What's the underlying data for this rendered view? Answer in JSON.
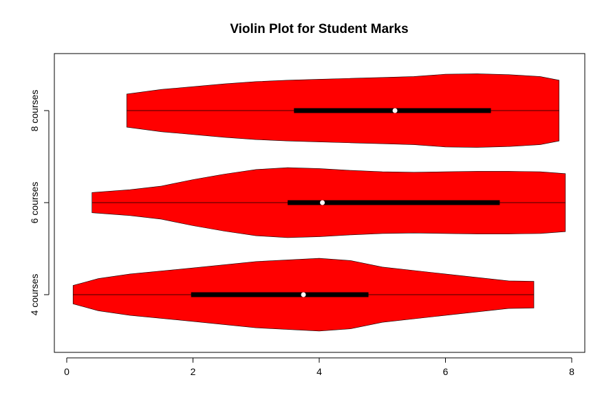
{
  "chart_data": {
    "type": "violin",
    "orientation": "horizontal",
    "title": "Violin Plot for Student Marks",
    "xlabel": "",
    "ylabel": "",
    "xlim": [
      0,
      8
    ],
    "x_ticks": [
      "0",
      "2",
      "4",
      "6",
      "8"
    ],
    "categories": [
      "4 courses",
      "6 courses",
      "8 courses"
    ],
    "grid": false,
    "fill_color": "#ff0000",
    "box_color": "#000000",
    "median_color": "#ffffff",
    "series": [
      {
        "label": "4 courses",
        "min": 0.1,
        "max": 7.4,
        "q1": 1.97,
        "median": 3.75,
        "q3": 4.78,
        "density": [
          [
            0.1,
            0.2
          ],
          [
            0.5,
            0.35
          ],
          [
            1.0,
            0.45
          ],
          [
            2.0,
            0.58
          ],
          [
            3.0,
            0.72
          ],
          [
            4.0,
            0.79
          ],
          [
            4.5,
            0.74
          ],
          [
            5.0,
            0.6
          ],
          [
            6.0,
            0.45
          ],
          [
            7.0,
            0.3
          ],
          [
            7.4,
            0.29
          ]
        ]
      },
      {
        "label": "6 courses",
        "min": 0.4,
        "max": 7.9,
        "q1": 3.5,
        "median": 4.05,
        "q3": 6.86,
        "density": [
          [
            0.4,
            0.22
          ],
          [
            1.0,
            0.28
          ],
          [
            1.5,
            0.36
          ],
          [
            2.0,
            0.5
          ],
          [
            2.5,
            0.62
          ],
          [
            3.0,
            0.72
          ],
          [
            3.5,
            0.76
          ],
          [
            4.0,
            0.74
          ],
          [
            4.5,
            0.7
          ],
          [
            5.0,
            0.67
          ],
          [
            5.5,
            0.66
          ],
          [
            6.0,
            0.67
          ],
          [
            6.5,
            0.68
          ],
          [
            7.0,
            0.68
          ],
          [
            7.5,
            0.67
          ],
          [
            7.9,
            0.63
          ]
        ]
      },
      {
        "label": "8 courses",
        "min": 0.95,
        "max": 7.8,
        "q1": 3.6,
        "median": 5.2,
        "q3": 6.72,
        "density": [
          [
            0.95,
            0.36
          ],
          [
            1.5,
            0.46
          ],
          [
            2.0,
            0.52
          ],
          [
            2.5,
            0.58
          ],
          [
            3.0,
            0.63
          ],
          [
            3.5,
            0.66
          ],
          [
            4.0,
            0.68
          ],
          [
            4.5,
            0.7
          ],
          [
            5.0,
            0.72
          ],
          [
            5.5,
            0.74
          ],
          [
            6.0,
            0.79
          ],
          [
            6.5,
            0.8
          ],
          [
            7.0,
            0.78
          ],
          [
            7.5,
            0.74
          ],
          [
            7.8,
            0.66
          ]
        ]
      }
    ]
  }
}
